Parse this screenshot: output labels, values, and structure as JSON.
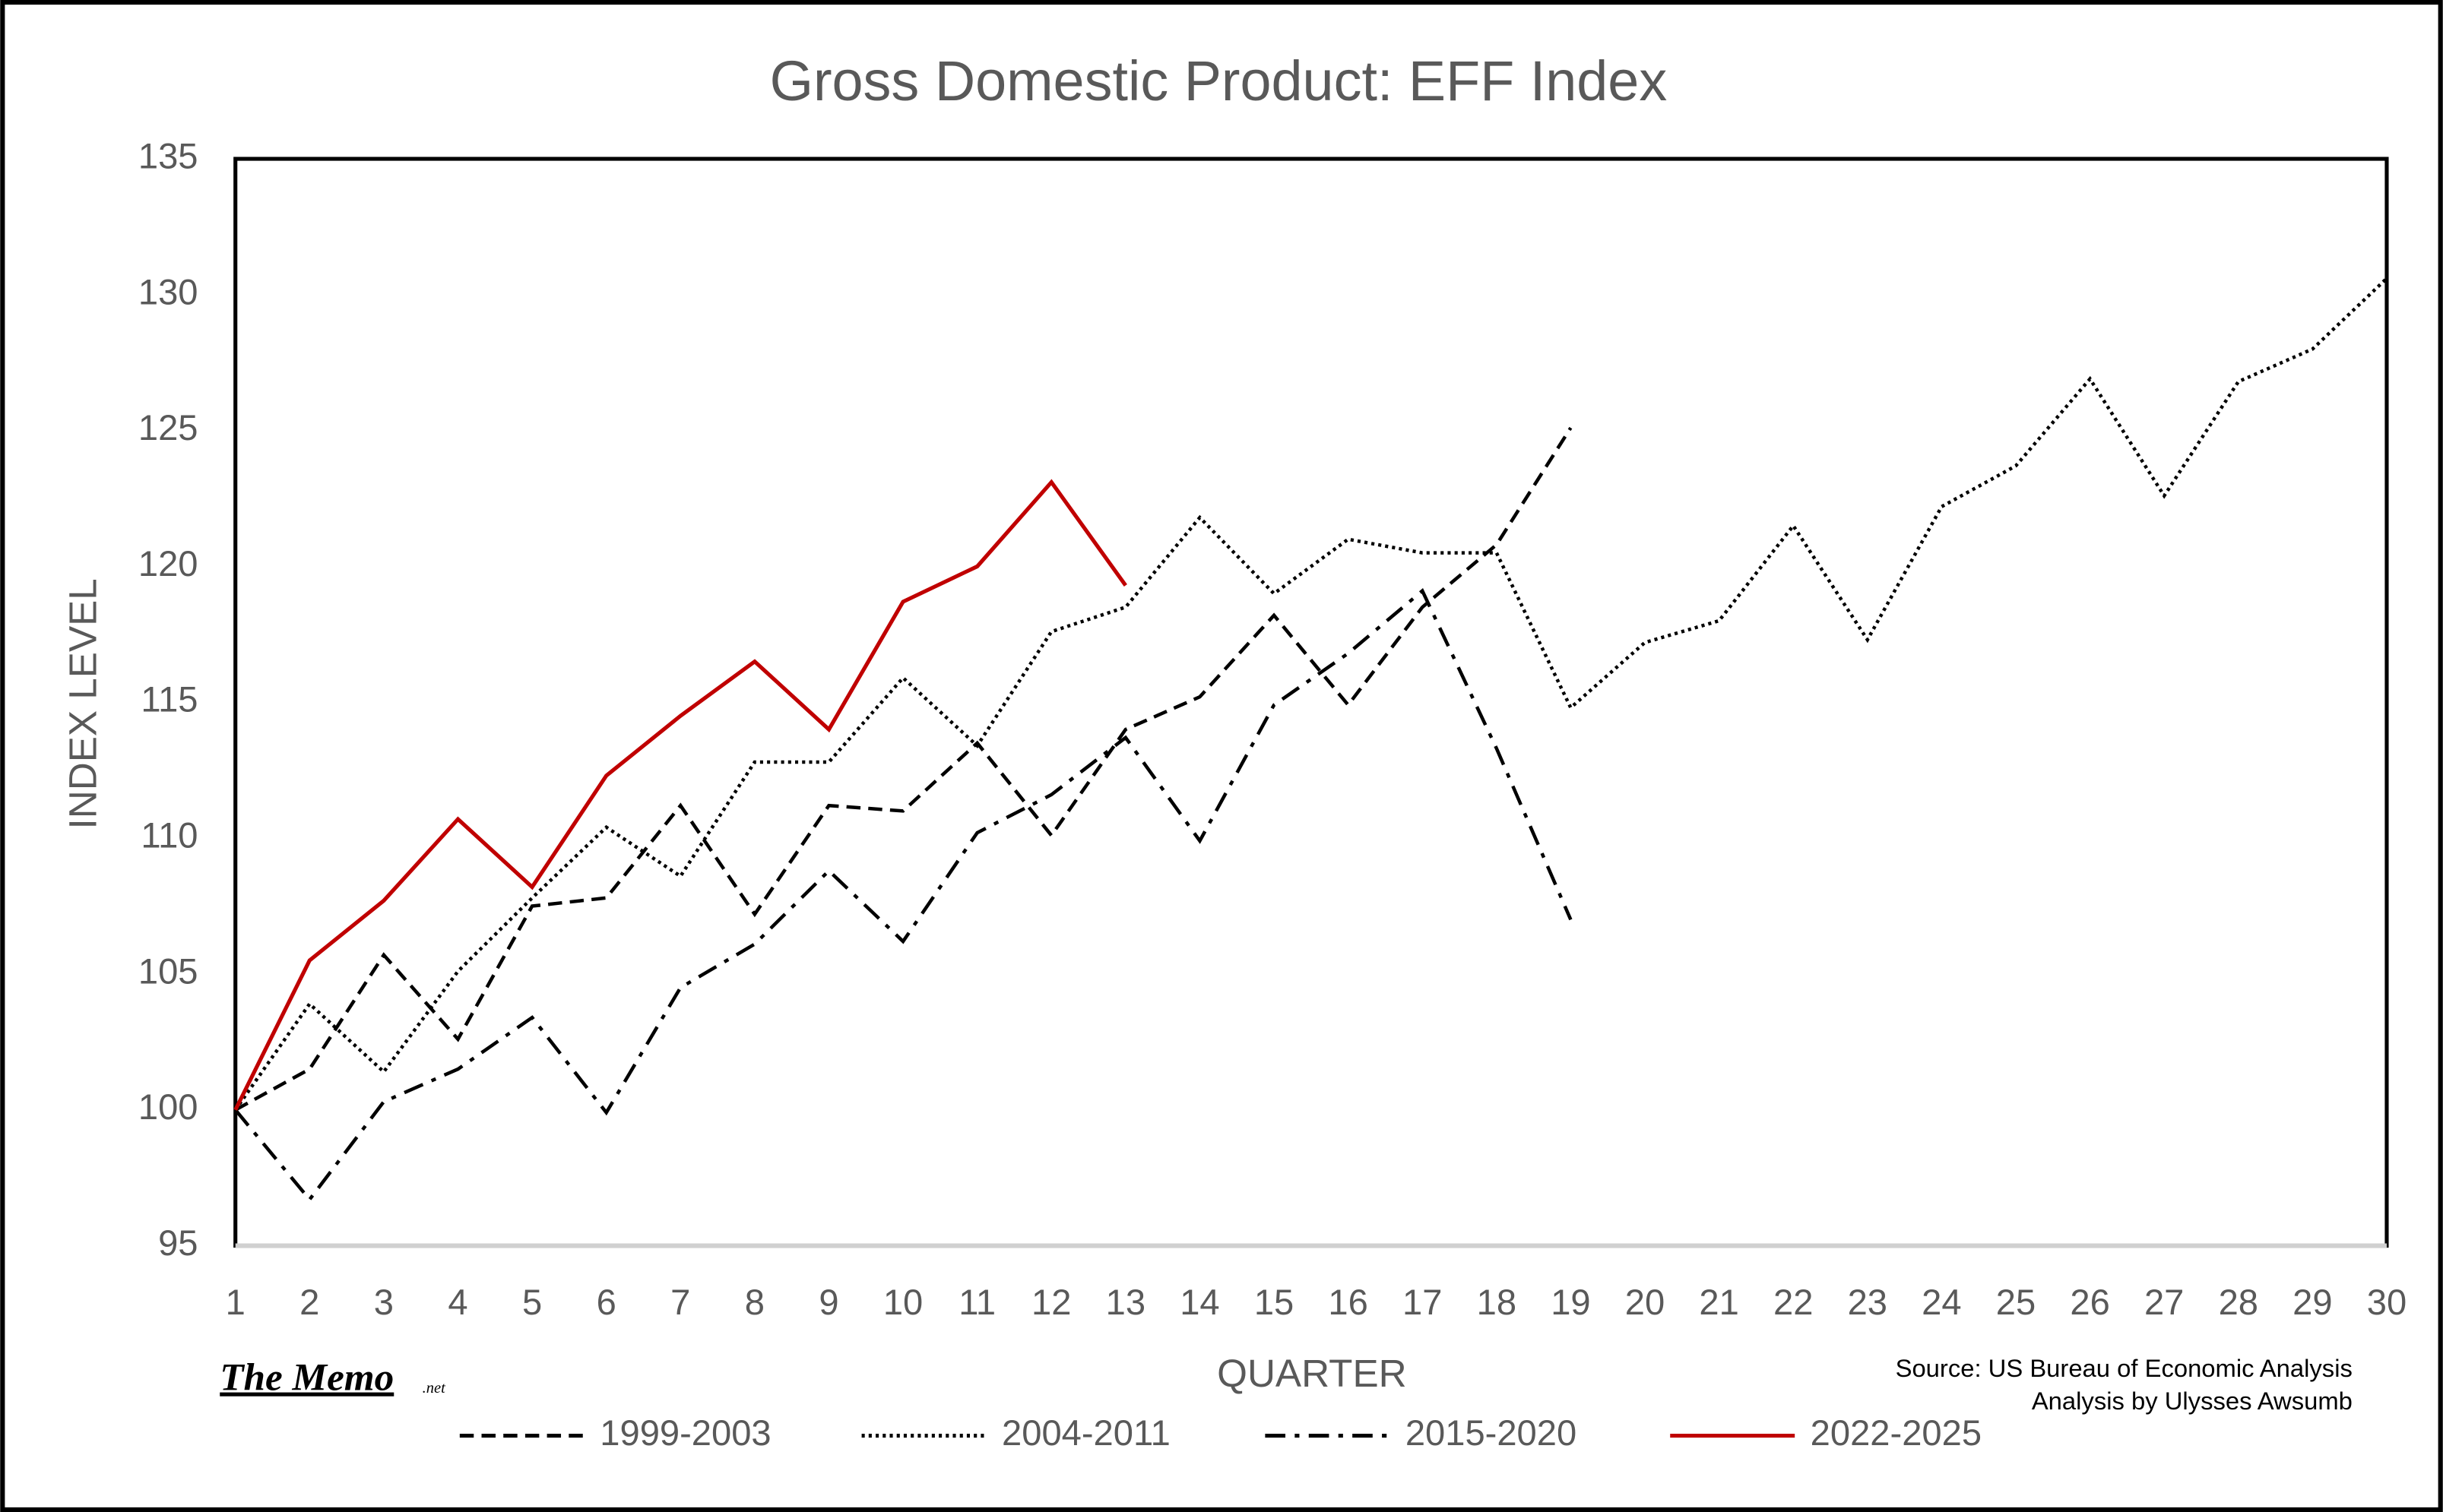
{
  "chart_data": {
    "type": "line",
    "title": "Gross Domestic Product: EFF Index",
    "xlabel": "QUARTER",
    "ylabel": "INDEX LEVEL",
    "source": "Source: US Bureau of Economic Analysis",
    "credit": "Analysis by Ulysses Awsumb",
    "logo": "The Memo",
    "logo_suffix": ".net",
    "x": [
      1,
      2,
      3,
      4,
      5,
      6,
      7,
      8,
      9,
      10,
      11,
      12,
      13,
      14,
      15,
      16,
      17,
      18,
      19,
      20,
      21,
      22,
      23,
      24,
      25,
      26,
      27,
      28,
      29,
      30
    ],
    "xlim": [
      1,
      30
    ],
    "xticks": [
      1,
      2,
      3,
      4,
      5,
      6,
      7,
      8,
      9,
      10,
      11,
      12,
      13,
      14,
      15,
      16,
      17,
      18,
      19,
      20,
      21,
      22,
      23,
      24,
      25,
      26,
      27,
      28,
      29,
      30
    ],
    "ylim": [
      95,
      135
    ],
    "yticks": [
      95,
      100,
      105,
      110,
      115,
      120,
      125,
      130,
      135
    ],
    "grid": false,
    "legend": "bottom",
    "series": [
      {
        "name": "1999-2003",
        "color": "#000000",
        "dash": "dashed",
        "values": [
          100,
          101.5,
          105.7,
          102.6,
          107.5,
          107.8,
          111.2,
          107.2,
          111.2,
          111.0,
          113.5,
          110.1,
          114.0,
          115.2,
          118.2,
          114.9,
          118.5,
          120.8,
          125.1,
          null,
          null,
          null,
          null,
          null,
          null,
          null,
          null,
          null,
          null,
          null
        ]
      },
      {
        "name": "2004-2011",
        "color": "#000000",
        "dash": "dotted",
        "values": [
          100,
          103.9,
          101.4,
          105.1,
          107.8,
          110.4,
          108.6,
          112.8,
          112.8,
          115.9,
          113.4,
          117.6,
          118.5,
          121.8,
          119.0,
          121.0,
          120.5,
          120.5,
          114.8,
          117.2,
          118.0,
          121.5,
          117.3,
          122.2,
          123.7,
          126.9,
          122.6,
          126.8,
          128.0,
          130.6
        ]
      },
      {
        "name": "2015-2020",
        "color": "#000000",
        "dash": "dashdot",
        "values": [
          100,
          96.7,
          100.3,
          101.5,
          103.4,
          99.9,
          104.5,
          106.1,
          108.8,
          106.2,
          110.2,
          111.6,
          113.7,
          109.9,
          114.9,
          116.8,
          119.1,
          113.3,
          107.0,
          null,
          null,
          null,
          null,
          null,
          null,
          null,
          null,
          null,
          null,
          null
        ]
      },
      {
        "name": "2022-2025",
        "color": "#c00000",
        "dash": "solid",
        "values": [
          100,
          105.5,
          107.7,
          110.7,
          108.2,
          112.3,
          114.5,
          116.5,
          114.0,
          118.7,
          120.0,
          123.1,
          119.3,
          null,
          null,
          null,
          null,
          null,
          null,
          null,
          null,
          null,
          null,
          null,
          null,
          null,
          null,
          null,
          null,
          null
        ]
      }
    ]
  }
}
